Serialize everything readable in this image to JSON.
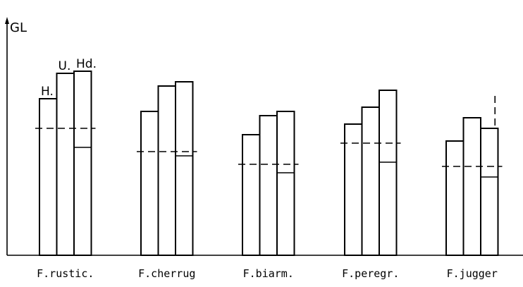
{
  "chart_data": {
    "type": "bar",
    "ylabel": "GL",
    "xlabel": "",
    "ylim": [
      0,
      100
    ],
    "categories": [
      "F.rustic.",
      "F.cherrug",
      "F.biarm.",
      "F.peregr.",
      "F.jugger"
    ],
    "series": [
      {
        "name": "H.",
        "values": [
          74,
          68,
          57,
          62,
          54
        ]
      },
      {
        "name": "U.",
        "values": [
          86,
          80,
          66,
          70,
          65
        ]
      },
      {
        "name": "Hd.",
        "values": [
          87,
          82,
          68,
          78,
          60
        ]
      }
    ],
    "reference_lines": [
      60,
      49,
      43,
      53,
      42
    ],
    "hd_lower_segment": [
      51,
      47,
      39,
      44,
      37
    ],
    "grid": false,
    "legend": "labels above bars of first group"
  }
}
